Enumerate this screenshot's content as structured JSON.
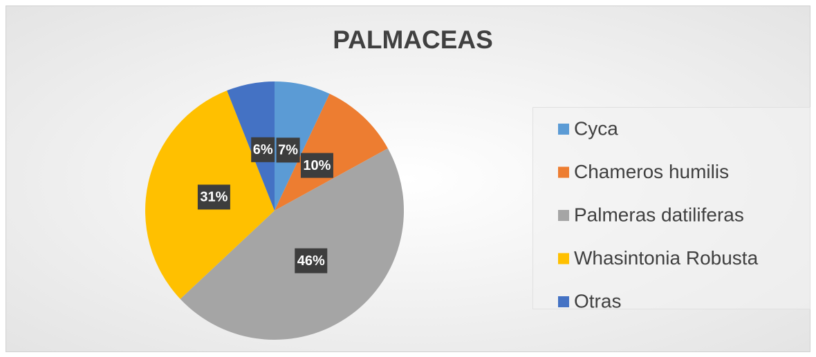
{
  "chart_data": {
    "type": "pie",
    "title": "PALMACEAS",
    "categories": [
      "Cyca",
      "Chameros humilis",
      "Palmeras datiliferas",
      "Whasintonia Robusta",
      "Otras"
    ],
    "values": [
      7,
      10,
      46,
      31,
      6
    ],
    "value_labels": [
      "7%",
      "10%",
      "46%",
      "31%",
      "6%"
    ],
    "colors": [
      "#5b9bd5",
      "#ed7d31",
      "#a5a5a5",
      "#ffc000",
      "#4472c4"
    ],
    "legend": "right"
  }
}
